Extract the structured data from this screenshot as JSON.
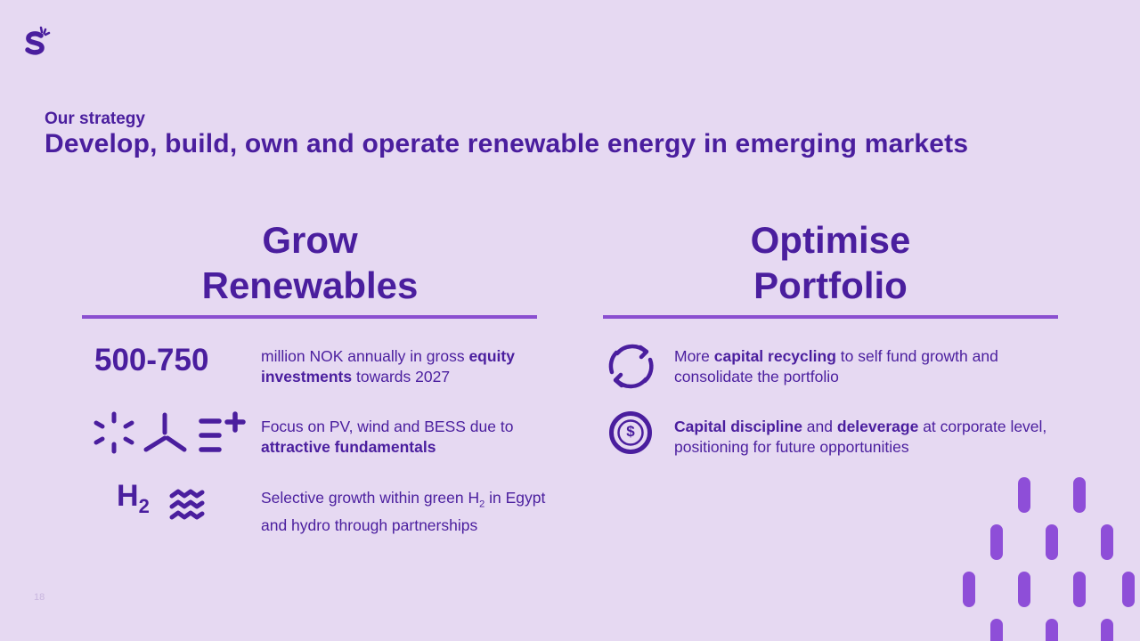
{
  "header": {
    "kicker": "Our strategy",
    "headline": "Develop, build, own and operate renewable energy in emerging markets"
  },
  "columns": [
    {
      "title_line1": "Grow",
      "title_line2": "Renewables"
    },
    {
      "title_line1": "Optimise",
      "title_line2": "Portfolio"
    }
  ],
  "grow": {
    "big_number": "500-750",
    "item1": {
      "pre": "million NOK annually in gross ",
      "bold": "equity investments",
      "post": " towards 2027"
    },
    "item2": {
      "pre": "Focus on PV, wind and BESS due to ",
      "bold": "attractive fundamentals"
    },
    "h2_main": "H",
    "h2_sub": "2",
    "item3": {
      "pre": "Selective growth within green H",
      "sub": "2",
      "post": " in Egypt and hydro through partnerships"
    }
  },
  "optimise": {
    "item1": {
      "pre": "More ",
      "bold": "capital recycling",
      "post": " to self fund growth and consolidate the portfolio"
    },
    "item2": {
      "bold1": "Capital discipline",
      "mid": " and ",
      "bold2": "deleverage",
      "post": " at corporate level, positioning for future opportunities"
    },
    "coin_symbol": "$"
  },
  "page_number": "18",
  "colors": {
    "background": "#E6D9F2",
    "text": "#4A1E9E",
    "rule": "#8A4FD0",
    "dashes": "#8E4ED8"
  },
  "icons": [
    "brand-logo-icon",
    "solar-icon",
    "wind-icon",
    "battery-plus-icon",
    "water-waves-icon",
    "recycle-arrows-icon",
    "dollar-coin-icon"
  ]
}
